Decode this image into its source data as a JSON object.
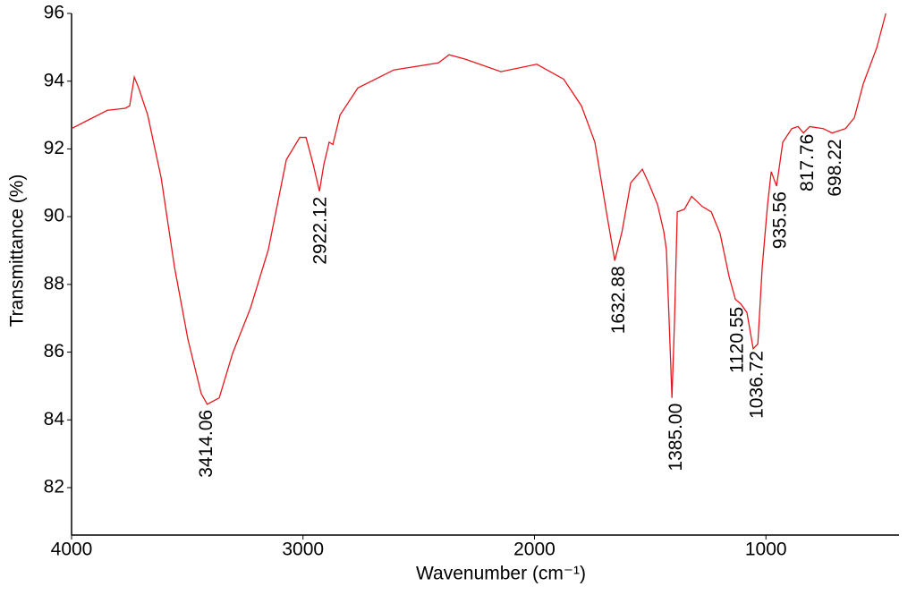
{
  "chart_data": {
    "type": "line",
    "x_label": "Wavenumber (cm⁻¹)",
    "y_label": "Transmittance (%)",
    "xlim": [
      4000,
      425
    ],
    "xticks": [
      4000,
      3000,
      2000,
      1000
    ],
    "ylim": [
      80.6,
      96
    ],
    "yticks": [
      82,
      84,
      86,
      88,
      90,
      92,
      94,
      96
    ],
    "grid": false,
    "series": [
      {
        "color": "#e8161b",
        "x": [
          4000,
          3923,
          3845,
          3768,
          3749,
          3729,
          3710,
          3671,
          3613,
          3555,
          3497,
          3440,
          3414,
          3362,
          3304,
          3227,
          3150,
          3072,
          3014,
          2987,
          2956,
          2929,
          2910,
          2887,
          2871,
          2840,
          2763,
          2608,
          2415,
          2369,
          2299,
          2145,
          1990,
          1874,
          1797,
          1739,
          1688,
          1653,
          1622,
          1584,
          1534,
          1507,
          1468,
          1441,
          1430,
          1418,
          1406,
          1395,
          1383,
          1352,
          1321,
          1275,
          1236,
          1198,
          1159,
          1132,
          1109,
          1082,
          1055,
          1035,
          1016,
          993,
          977,
          954,
          927,
          888,
          861,
          838,
          811,
          753,
          714,
          656,
          618,
          579,
          521,
          482
        ],
        "values": [
          92.6,
          92.87,
          93.14,
          93.2,
          93.27,
          94.12,
          93.8,
          93.0,
          91.15,
          88.5,
          86.37,
          84.78,
          84.46,
          84.65,
          85.97,
          87.3,
          89.02,
          91.68,
          92.34,
          92.34,
          91.54,
          90.75,
          91.54,
          92.2,
          92.13,
          93.0,
          93.8,
          94.33,
          94.54,
          94.78,
          94.65,
          94.28,
          94.5,
          94.06,
          93.27,
          92.2,
          90.09,
          88.7,
          89.55,
          91.0,
          91.4,
          91.0,
          90.35,
          89.55,
          89.02,
          86.9,
          84.65,
          86.9,
          90.14,
          90.22,
          90.6,
          90.3,
          90.14,
          89.5,
          88.23,
          87.56,
          87.43,
          87.17,
          86.1,
          86.24,
          88.5,
          90.35,
          91.33,
          90.9,
          92.2,
          92.6,
          92.66,
          92.47,
          92.66,
          92.6,
          92.47,
          92.6,
          92.92,
          93.93,
          94.99,
          96.0
        ]
      }
    ],
    "annotations": [
      {
        "x": 3414.06,
        "y": 84.46,
        "label": "3414.06"
      },
      {
        "x": 2922.12,
        "y": 90.75,
        "label": "2922.12"
      },
      {
        "x": 1632.88,
        "y": 88.7,
        "label": "1632.88"
      },
      {
        "x": 1385.0,
        "y": 84.65,
        "label": "1385.00"
      },
      {
        "x": 1120.55,
        "y": 87.5,
        "label": "1120.55"
      },
      {
        "x": 1036.72,
        "y": 86.2,
        "label": "1036.72"
      },
      {
        "x": 935.56,
        "y": 90.9,
        "label": "935.56"
      },
      {
        "x": 817.76,
        "y": 92.6,
        "label": "817.76"
      },
      {
        "x": 698.22,
        "y": 92.45,
        "label": "698.22"
      }
    ]
  }
}
